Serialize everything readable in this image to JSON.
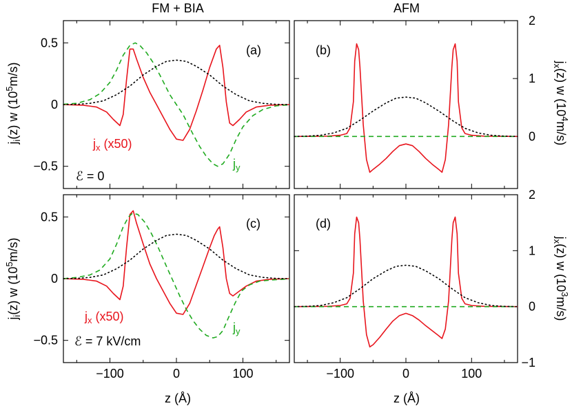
{
  "column_titles": {
    "left": "FM + BIA",
    "right": "AFM"
  },
  "labels": {
    "ylabel_left_top": "j_i(z) w  (10^5 m/s)",
    "ylabel_left_bottom": "j_i(z) w  (10^5 m/s)",
    "ylabel_right_top": "j_x(z) w  (10^4 m/s)",
    "ylabel_right_bottom": "j_x(z) w  (10^3 m/s)",
    "xlabel_left": "z  (Å)",
    "xlabel_right": "z  (Å)"
  },
  "colors": {
    "jx": "#e8141c",
    "jy": "#1faa1f",
    "density": "#000000"
  },
  "chart_data": [
    {
      "id": "a",
      "panel_label": "(a)",
      "type": "line",
      "xlim": [
        -170,
        170
      ],
      "ylim": [
        -0.68,
        0.68
      ],
      "xticks": [
        -100,
        0,
        100
      ],
      "yticks": [
        {
          "v": -0.5,
          "t": "-0.5"
        },
        {
          "v": 0,
          "t": "0"
        },
        {
          "v": 0.5,
          "t": "0.5"
        }
      ],
      "annotations": [
        "j_x (x50)",
        "j_y",
        "ℰ = 0"
      ],
      "series": [
        {
          "key": "jx",
          "style": "solid",
          "x": [
            -170,
            -140,
            -120,
            -105,
            -95,
            -85,
            -80,
            -75,
            -70,
            -65,
            -60,
            -50,
            -40,
            -30,
            -20,
            -10,
            0,
            10,
            20,
            30,
            40,
            50,
            60,
            65,
            70,
            75,
            80,
            85,
            95,
            105,
            120,
            140,
            170
          ],
          "y": [
            0,
            -0.005,
            -0.02,
            -0.06,
            -0.12,
            -0.17,
            -0.08,
            0.2,
            0.45,
            0.45,
            0.37,
            0.22,
            0.1,
            0.0,
            -0.1,
            -0.2,
            -0.28,
            -0.29,
            -0.2,
            -0.05,
            0.12,
            0.3,
            0.45,
            0.48,
            0.3,
            0.02,
            -0.15,
            -0.17,
            -0.12,
            -0.06,
            -0.02,
            -0.005,
            0
          ]
        },
        {
          "key": "jy",
          "style": "dashed",
          "x": [
            -170,
            -150,
            -130,
            -115,
            -100,
            -90,
            -80,
            -70,
            -62,
            -55,
            -45,
            -35,
            -25,
            -10,
            0,
            10,
            25,
            35,
            45,
            55,
            62,
            70,
            80,
            90,
            100,
            115,
            130,
            150,
            170
          ],
          "y": [
            0.002,
            0.01,
            0.04,
            0.09,
            0.18,
            0.28,
            0.4,
            0.48,
            0.5,
            0.48,
            0.42,
            0.34,
            0.24,
            0.08,
            0,
            -0.08,
            -0.24,
            -0.34,
            -0.42,
            -0.48,
            -0.5,
            -0.48,
            -0.4,
            -0.28,
            -0.18,
            -0.09,
            -0.04,
            -0.01,
            -0.002
          ]
        },
        {
          "key": "density",
          "style": "dotted",
          "x": [
            -170,
            -150,
            -130,
            -110,
            -90,
            -70,
            -50,
            -30,
            -15,
            0,
            15,
            30,
            50,
            70,
            90,
            110,
            130,
            150,
            170
          ],
          "y": [
            0.0,
            0.002,
            0.01,
            0.03,
            0.08,
            0.15,
            0.24,
            0.31,
            0.35,
            0.36,
            0.35,
            0.31,
            0.24,
            0.15,
            0.08,
            0.03,
            0.01,
            0.002,
            0.0
          ]
        }
      ]
    },
    {
      "id": "b",
      "panel_label": "(b)",
      "type": "line",
      "xlim": [
        -170,
        170
      ],
      "ylim": [
        -0.9,
        2.0
      ],
      "xticks": [
        -100,
        0,
        100
      ],
      "yticks": [
        {
          "v": 0,
          "t": "0"
        },
        {
          "v": 1,
          "t": "1"
        },
        {
          "v": 2,
          "t": "2"
        }
      ],
      "annotations": [],
      "series": [
        {
          "key": "jx",
          "style": "solid",
          "x": [
            -170,
            -120,
            -100,
            -90,
            -85,
            -80,
            -78,
            -75,
            -72,
            -70,
            -65,
            -60,
            -55,
            -50,
            -40,
            -30,
            -20,
            -10,
            0,
            10,
            20,
            30,
            40,
            50,
            55,
            60,
            65,
            70,
            72,
            75,
            78,
            80,
            85,
            90,
            100,
            120,
            170
          ],
          "y": [
            0,
            0.005,
            0.02,
            0.05,
            0.15,
            0.6,
            1.3,
            1.6,
            1.5,
            1.2,
            0.2,
            -0.4,
            -0.62,
            -0.57,
            -0.48,
            -0.38,
            -0.26,
            -0.16,
            -0.13,
            -0.16,
            -0.26,
            -0.38,
            -0.48,
            -0.57,
            -0.62,
            -0.4,
            0.2,
            1.2,
            1.5,
            1.6,
            1.3,
            0.6,
            0.15,
            0.05,
            0.02,
            0.005,
            0
          ]
        },
        {
          "key": "jy",
          "style": "dashed",
          "x": [
            -170,
            170
          ],
          "y": [
            0,
            0
          ]
        },
        {
          "key": "density",
          "style": "dotted",
          "x": [
            -170,
            -150,
            -130,
            -110,
            -90,
            -70,
            -50,
            -30,
            -15,
            0,
            15,
            30,
            50,
            70,
            90,
            110,
            130,
            150,
            170
          ],
          "y": [
            0.0,
            0.005,
            0.02,
            0.06,
            0.14,
            0.28,
            0.44,
            0.58,
            0.66,
            0.68,
            0.66,
            0.58,
            0.44,
            0.28,
            0.14,
            0.06,
            0.02,
            0.005,
            0.0
          ]
        }
      ]
    },
    {
      "id": "c",
      "panel_label": "(c)",
      "type": "line",
      "xlim": [
        -170,
        170
      ],
      "ylim": [
        -0.68,
        0.68
      ],
      "xticks": [
        -100,
        0,
        100
      ],
      "yticks": [
        {
          "v": -0.5,
          "t": "-0.5"
        },
        {
          "v": 0,
          "t": "0"
        },
        {
          "v": 0.5,
          "t": "0.5"
        }
      ],
      "annotations": [
        "j_x (x50)",
        "j_y",
        "ℰ = 7 kV/cm"
      ],
      "series": [
        {
          "key": "jx",
          "style": "solid",
          "x": [
            -170,
            -140,
            -120,
            -105,
            -95,
            -85,
            -80,
            -75,
            -70,
            -65,
            -60,
            -50,
            -40,
            -30,
            -20,
            -10,
            0,
            10,
            20,
            30,
            40,
            50,
            57,
            62,
            65,
            70,
            75,
            80,
            85,
            95,
            105,
            120,
            140,
            170
          ],
          "y": [
            0,
            -0.005,
            -0.02,
            -0.06,
            -0.12,
            -0.17,
            -0.06,
            0.25,
            0.52,
            0.55,
            0.45,
            0.28,
            0.12,
            0.0,
            -0.1,
            -0.2,
            -0.28,
            -0.29,
            -0.2,
            -0.05,
            0.1,
            0.25,
            0.35,
            0.4,
            0.42,
            0.25,
            0.0,
            -0.12,
            -0.14,
            -0.1,
            -0.06,
            -0.02,
            -0.005,
            0
          ]
        },
        {
          "key": "jy",
          "style": "dashed",
          "x": [
            -170,
            -150,
            -130,
            -115,
            -100,
            -90,
            -80,
            -72,
            -66,
            -58,
            -48,
            -38,
            -28,
            -15,
            -5,
            5,
            15,
            25,
            35,
            45,
            55,
            62,
            70,
            78,
            88,
            98,
            110,
            125,
            145,
            170
          ],
          "y": [
            0.0,
            0.01,
            0.03,
            0.07,
            0.16,
            0.28,
            0.42,
            0.5,
            0.53,
            0.52,
            0.46,
            0.37,
            0.26,
            0.1,
            -0.02,
            -0.14,
            -0.25,
            -0.34,
            -0.41,
            -0.46,
            -0.48,
            -0.47,
            -0.42,
            -0.32,
            -0.2,
            -0.1,
            -0.05,
            -0.02,
            -0.01,
            -0.002
          ]
        },
        {
          "key": "density",
          "style": "dotted",
          "x": [
            -170,
            -150,
            -130,
            -110,
            -90,
            -70,
            -50,
            -30,
            -15,
            0,
            15,
            30,
            50,
            70,
            90,
            110,
            130,
            150,
            170
          ],
          "y": [
            0.0,
            0.002,
            0.01,
            0.03,
            0.08,
            0.15,
            0.24,
            0.31,
            0.35,
            0.36,
            0.35,
            0.31,
            0.24,
            0.15,
            0.08,
            0.03,
            0.01,
            0.002,
            0.0
          ]
        }
      ]
    },
    {
      "id": "d",
      "panel_label": "(d)",
      "type": "line",
      "xlim": [
        -170,
        170
      ],
      "ylim": [
        -1.0,
        2.0
      ],
      "xticks": [
        -100,
        0,
        100
      ],
      "yticks": [
        {
          "v": -1,
          "t": "-1"
        },
        {
          "v": 0,
          "t": "0"
        },
        {
          "v": 1,
          "t": "1"
        },
        {
          "v": 2,
          "t": "2"
        }
      ],
      "annotations": [],
      "series": [
        {
          "key": "jx",
          "style": "solid",
          "x": [
            -170,
            -120,
            -100,
            -90,
            -85,
            -80,
            -78,
            -75,
            -72,
            -70,
            -65,
            -60,
            -55,
            -50,
            -40,
            -30,
            -20,
            -10,
            0,
            10,
            20,
            30,
            40,
            50,
            55,
            60,
            65,
            70,
            72,
            75,
            78,
            80,
            85,
            90,
            100,
            120,
            170
          ],
          "y": [
            0,
            0.005,
            0.02,
            0.05,
            0.15,
            0.6,
            1.3,
            1.6,
            1.5,
            1.2,
            0.1,
            -0.5,
            -0.72,
            -0.68,
            -0.55,
            -0.4,
            -0.26,
            -0.16,
            -0.12,
            -0.16,
            -0.24,
            -0.34,
            -0.43,
            -0.52,
            -0.57,
            -0.4,
            0.1,
            1.2,
            1.5,
            1.6,
            1.3,
            0.6,
            0.15,
            0.05,
            0.02,
            0.005,
            0
          ]
        },
        {
          "key": "jy",
          "style": "dashed",
          "x": [
            -170,
            170
          ],
          "y": [
            0,
            0
          ]
        },
        {
          "key": "density",
          "style": "dotted",
          "x": [
            -170,
            -150,
            -130,
            -110,
            -90,
            -70,
            -50,
            -30,
            -15,
            0,
            15,
            30,
            50,
            70,
            90,
            110,
            130,
            150,
            170
          ],
          "y": [
            0.0,
            0.005,
            0.02,
            0.07,
            0.16,
            0.32,
            0.5,
            0.64,
            0.72,
            0.74,
            0.72,
            0.64,
            0.5,
            0.32,
            0.16,
            0.07,
            0.02,
            0.005,
            0.0
          ]
        }
      ]
    }
  ]
}
